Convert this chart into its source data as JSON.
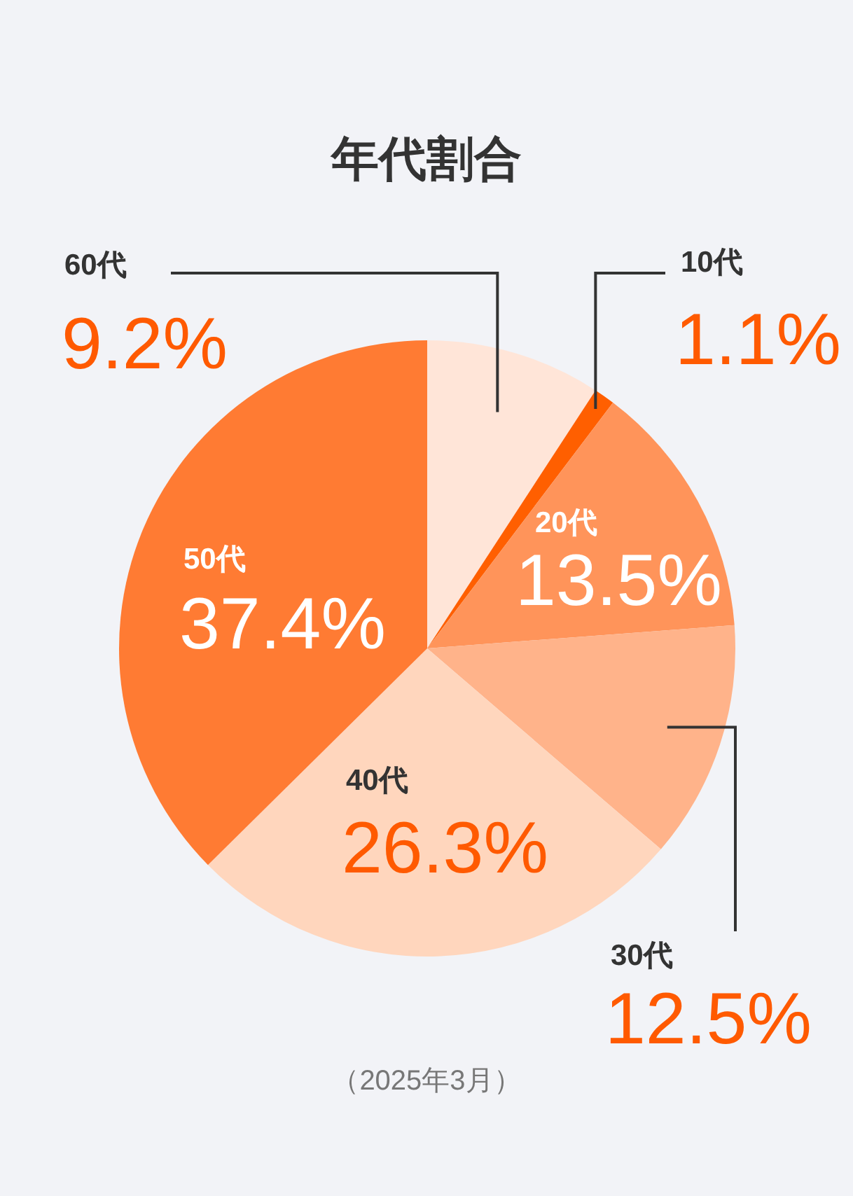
{
  "chart_data": {
    "type": "pie",
    "title": "年代割合",
    "categories": [
      "60代",
      "10代",
      "20代",
      "30代",
      "40代",
      "50代"
    ],
    "values": [
      9.2,
      1.1,
      13.5,
      12.5,
      26.3,
      37.4
    ],
    "colors": [
      "#ffe5d8",
      "#ff5f00",
      "#ff945a",
      "#ffb38a",
      "#ffd6bd",
      "#ff7b33"
    ],
    "value_labels": [
      "9.2%",
      "1.1%",
      "13.5%",
      "12.5%",
      "26.3%",
      "37.4%"
    ],
    "annotations": [
      "（2025年3月）"
    ]
  }
}
